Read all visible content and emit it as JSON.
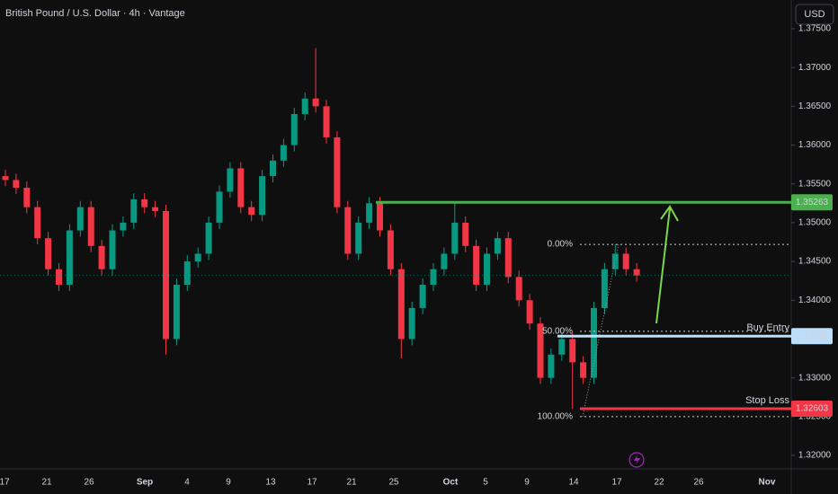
{
  "chart_data": {
    "type": "candlestick",
    "title": "British Pound / U.S. Dollar · 4h · Vantage",
    "currency": "USD",
    "ylim": [
      1.3185,
      1.3787
    ],
    "yticks": [
      {
        "value": 1.32,
        "label": "1.32000"
      },
      {
        "value": 1.325,
        "label": "1.32500"
      },
      {
        "value": 1.33,
        "label": "1.33000"
      },
      {
        "value": 1.335,
        "label": "1.33500"
      },
      {
        "value": 1.34,
        "label": "1.34000"
      },
      {
        "value": 1.345,
        "label": "1.34500"
      },
      {
        "value": 1.35,
        "label": "1.35000"
      },
      {
        "value": 1.355,
        "label": "1.35500"
      },
      {
        "value": 1.36,
        "label": "1.36000"
      },
      {
        "value": 1.365,
        "label": "1.36500"
      },
      {
        "value": 1.37,
        "label": "1.37000"
      },
      {
        "value": 1.375,
        "label": "1.37500"
      }
    ],
    "x_labels": [
      "17",
      "21",
      "26",
      "Sep",
      "4",
      "9",
      "13",
      "17",
      "21",
      "25",
      "Oct",
      "5",
      "9",
      "14",
      "17",
      "22",
      "26",
      "Nov"
    ],
    "up_color": "#089981",
    "down_color": "#f23645",
    "open": [
      1.356,
      1.3555,
      1.3545,
      1.352,
      1.348,
      1.344,
      1.342,
      1.349,
      1.352,
      1.347,
      1.344,
      1.349,
      1.35,
      1.353,
      1.352,
      1.3515,
      1.335,
      1.342,
      1.345,
      1.346,
      1.35,
      1.354,
      1.357,
      1.352,
      1.351,
      1.356,
      1.358,
      1.36,
      1.364,
      1.366,
      1.365,
      1.361,
      1.352,
      1.346,
      1.35,
      1.3525,
      1.349,
      1.344,
      1.335,
      1.339,
      1.342,
      1.344,
      1.346,
      1.35,
      1.347,
      1.342,
      1.346,
      1.348,
      1.343,
      1.34,
      1.337,
      1.33,
      1.333,
      1.335,
      1.332,
      1.33,
      1.339,
      1.344,
      1.346,
      1.344
    ],
    "high": [
      1.3568,
      1.3563,
      1.3553,
      1.3528,
      1.3488,
      1.3448,
      1.3498,
      1.3528,
      1.3528,
      1.3478,
      1.3498,
      1.3508,
      1.3538,
      1.3538,
      1.3528,
      1.3523,
      1.3428,
      1.3458,
      1.3468,
      1.3508,
      1.3548,
      1.3578,
      1.3578,
      1.3528,
      1.3568,
      1.3588,
      1.3608,
      1.3648,
      1.3668,
      1.3725,
      1.3658,
      1.3618,
      1.3528,
      1.3508,
      1.3533,
      1.3533,
      1.3498,
      1.3448,
      1.3398,
      1.3428,
      1.3448,
      1.3468,
      1.3525,
      1.3508,
      1.3478,
      1.3468,
      1.3488,
      1.3488,
      1.3438,
      1.3408,
      1.3378,
      1.3338,
      1.3358,
      1.3358,
      1.3328,
      1.3398,
      1.3448,
      1.3472,
      1.3468,
      1.3448
    ],
    "low": [
      1.3547,
      1.3537,
      1.3512,
      1.3472,
      1.3432,
      1.3412,
      1.3412,
      1.3482,
      1.3462,
      1.3432,
      1.3432,
      1.3482,
      1.3492,
      1.3512,
      1.3507,
      1.333,
      1.3342,
      1.3412,
      1.3442,
      1.3452,
      1.3492,
      1.3532,
      1.3512,
      1.3502,
      1.3502,
      1.3552,
      1.3572,
      1.3592,
      1.3632,
      1.3642,
      1.3602,
      1.3512,
      1.3452,
      1.3452,
      1.3492,
      1.3482,
      1.3432,
      1.3325,
      1.3342,
      1.3382,
      1.3412,
      1.3432,
      1.3452,
      1.3462,
      1.3412,
      1.3412,
      1.3452,
      1.3422,
      1.3392,
      1.3362,
      1.3292,
      1.3292,
      1.3322,
      1.326,
      1.3292,
      1.3292,
      1.3382,
      1.3432,
      1.3432,
      1.3424
    ],
    "close": [
      1.3555,
      1.3545,
      1.352,
      1.348,
      1.344,
      1.342,
      1.349,
      1.352,
      1.347,
      1.344,
      1.349,
      1.35,
      1.353,
      1.352,
      1.3515,
      1.335,
      1.342,
      1.345,
      1.346,
      1.35,
      1.354,
      1.357,
      1.352,
      1.351,
      1.356,
      1.358,
      1.36,
      1.364,
      1.366,
      1.365,
      1.361,
      1.352,
      1.346,
      1.35,
      1.3525,
      1.349,
      1.344,
      1.335,
      1.339,
      1.342,
      1.344,
      1.346,
      1.35,
      1.347,
      1.342,
      1.346,
      1.348,
      1.343,
      1.34,
      1.337,
      1.33,
      1.333,
      1.335,
      1.332,
      1.33,
      1.339,
      1.344,
      1.346,
      1.344,
      1.3432
    ],
    "levels": [
      {
        "value": 1.35263,
        "color": "#4caf50"
      },
      {
        "label": "Buy Entry",
        "value": 1.33538,
        "color": "#bbdefb"
      },
      {
        "label": "Stop Loss",
        "value": 1.32603,
        "color": "#f23645"
      }
    ],
    "fib_levels": [
      {
        "label": "0.00%",
        "value": 1.3472
      },
      {
        "label": "50.00%",
        "value": 1.336
      },
      {
        "label": "100.00%",
        "value": 1.325
      }
    ]
  }
}
